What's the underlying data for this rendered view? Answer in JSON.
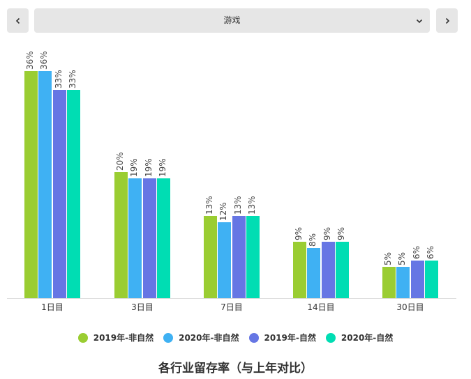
{
  "header": {
    "prev_icon": "chevron-left-icon",
    "next_icon": "chevron-right-icon",
    "select_value": "游戏",
    "select_icon": "chevron-down-icon"
  },
  "chart_data": {
    "type": "bar",
    "title": "各行业留存率（与上年对比）",
    "xlabel": "",
    "ylabel": "",
    "categories": [
      "1日目",
      "3日目",
      "7日目",
      "14日目",
      "30日目"
    ],
    "series": [
      {
        "name": "2019年-非自然",
        "color": "#9acd32",
        "values": [
          36,
          20,
          13,
          9,
          5
        ]
      },
      {
        "name": "2020年-非自然",
        "color": "#3fb1f3",
        "values": [
          36,
          19,
          12,
          8,
          5
        ]
      },
      {
        "name": "2019年-自然",
        "color": "#6676e4",
        "values": [
          33,
          19,
          13,
          9,
          6
        ]
      },
      {
        "name": "2020年-自然",
        "color": "#00ddb3",
        "values": [
          33,
          19,
          13,
          9,
          6
        ]
      }
    ],
    "value_suffix": "%",
    "ylim": [
      0,
      36
    ],
    "grid": false,
    "legend_position": "bottom"
  }
}
